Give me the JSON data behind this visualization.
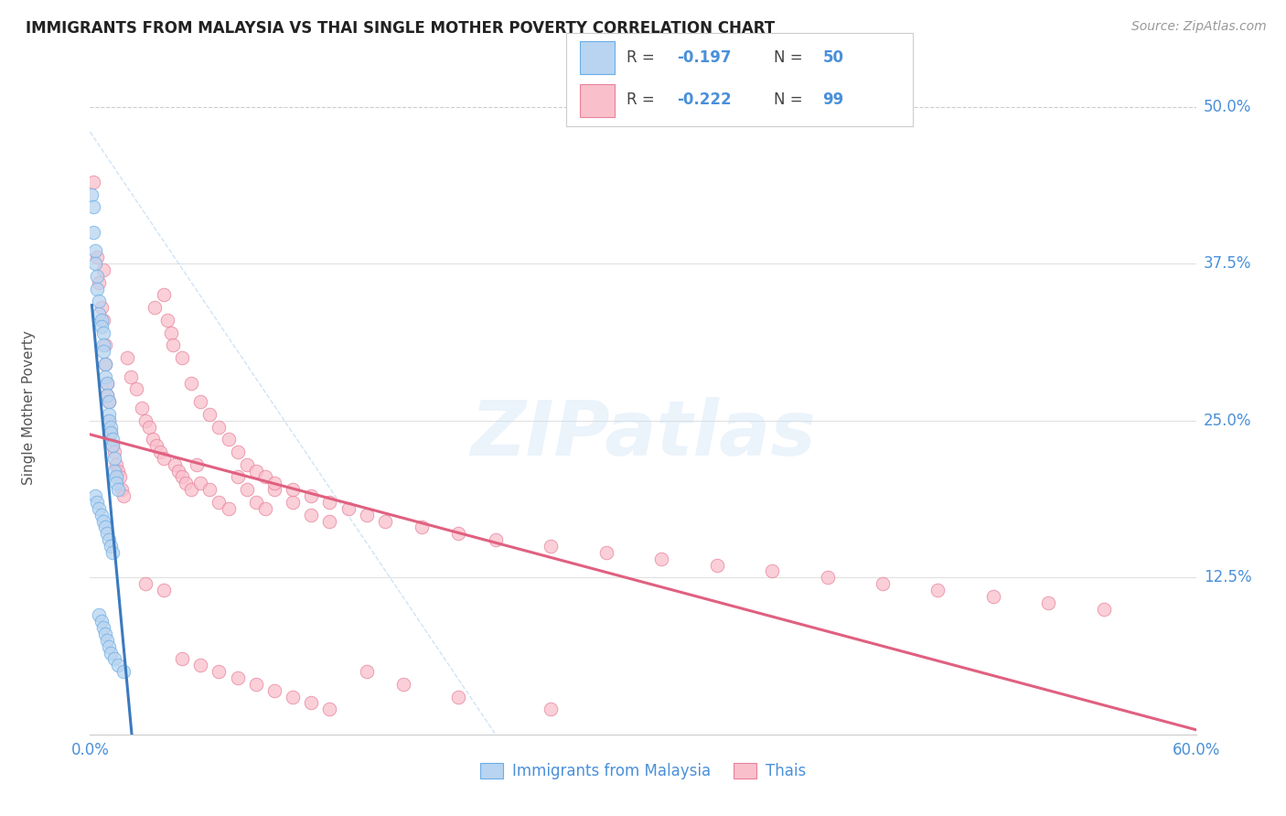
{
  "title": "IMMIGRANTS FROM MALAYSIA VS THAI SINGLE MOTHER POVERTY CORRELATION CHART",
  "source": "Source: ZipAtlas.com",
  "ylabel": "Single Mother Poverty",
  "legend_entries": [
    {
      "label": "Immigrants from Malaysia",
      "R": "-0.197",
      "N": "50",
      "scatter_color": "#b8d4f0",
      "edge_color": "#6aaee8",
      "line_color": "#3a7abf"
    },
    {
      "label": "Thais",
      "R": "-0.222",
      "N": "99",
      "scatter_color": "#f9c0cc",
      "edge_color": "#e8809a",
      "line_color": "#e06080"
    }
  ],
  "malaysia_x": [
    0.001,
    0.002,
    0.002,
    0.003,
    0.003,
    0.004,
    0.004,
    0.005,
    0.005,
    0.006,
    0.006,
    0.007,
    0.007,
    0.007,
    0.008,
    0.008,
    0.009,
    0.009,
    0.01,
    0.01,
    0.01,
    0.011,
    0.011,
    0.012,
    0.012,
    0.013,
    0.013,
    0.014,
    0.014,
    0.015,
    0.003,
    0.004,
    0.005,
    0.006,
    0.007,
    0.008,
    0.009,
    0.01,
    0.011,
    0.012,
    0.005,
    0.006,
    0.007,
    0.008,
    0.009,
    0.01,
    0.011,
    0.013,
    0.015,
    0.018
  ],
  "malaysia_y": [
    0.43,
    0.42,
    0.4,
    0.385,
    0.375,
    0.365,
    0.355,
    0.345,
    0.335,
    0.33,
    0.325,
    0.32,
    0.31,
    0.305,
    0.295,
    0.285,
    0.28,
    0.27,
    0.265,
    0.255,
    0.25,
    0.245,
    0.24,
    0.235,
    0.23,
    0.22,
    0.21,
    0.205,
    0.2,
    0.195,
    0.19,
    0.185,
    0.18,
    0.175,
    0.17,
    0.165,
    0.16,
    0.155,
    0.15,
    0.145,
    0.095,
    0.09,
    0.085,
    0.08,
    0.075,
    0.07,
    0.065,
    0.06,
    0.055,
    0.05
  ],
  "thai_x": [
    0.002,
    0.004,
    0.005,
    0.006,
    0.007,
    0.007,
    0.008,
    0.008,
    0.009,
    0.009,
    0.01,
    0.01,
    0.011,
    0.012,
    0.013,
    0.014,
    0.015,
    0.016,
    0.017,
    0.018,
    0.02,
    0.022,
    0.025,
    0.028,
    0.03,
    0.032,
    0.034,
    0.036,
    0.038,
    0.04,
    0.042,
    0.044,
    0.046,
    0.048,
    0.05,
    0.052,
    0.055,
    0.058,
    0.06,
    0.065,
    0.07,
    0.075,
    0.08,
    0.085,
    0.09,
    0.095,
    0.1,
    0.11,
    0.12,
    0.13,
    0.035,
    0.04,
    0.045,
    0.05,
    0.055,
    0.06,
    0.065,
    0.07,
    0.075,
    0.08,
    0.085,
    0.09,
    0.095,
    0.1,
    0.11,
    0.12,
    0.13,
    0.14,
    0.15,
    0.16,
    0.18,
    0.2,
    0.22,
    0.25,
    0.28,
    0.31,
    0.34,
    0.37,
    0.4,
    0.43,
    0.46,
    0.49,
    0.52,
    0.55,
    0.03,
    0.04,
    0.05,
    0.06,
    0.07,
    0.08,
    0.09,
    0.1,
    0.11,
    0.12,
    0.13,
    0.15,
    0.17,
    0.2,
    0.25
  ],
  "thai_y": [
    0.44,
    0.38,
    0.36,
    0.34,
    0.37,
    0.33,
    0.31,
    0.295,
    0.28,
    0.27,
    0.265,
    0.25,
    0.24,
    0.23,
    0.225,
    0.215,
    0.21,
    0.205,
    0.195,
    0.19,
    0.3,
    0.285,
    0.275,
    0.26,
    0.25,
    0.245,
    0.235,
    0.23,
    0.225,
    0.22,
    0.33,
    0.32,
    0.215,
    0.21,
    0.205,
    0.2,
    0.195,
    0.215,
    0.2,
    0.195,
    0.185,
    0.18,
    0.205,
    0.195,
    0.185,
    0.18,
    0.195,
    0.185,
    0.175,
    0.17,
    0.34,
    0.35,
    0.31,
    0.3,
    0.28,
    0.265,
    0.255,
    0.245,
    0.235,
    0.225,
    0.215,
    0.21,
    0.205,
    0.2,
    0.195,
    0.19,
    0.185,
    0.18,
    0.175,
    0.17,
    0.165,
    0.16,
    0.155,
    0.15,
    0.145,
    0.14,
    0.135,
    0.13,
    0.125,
    0.12,
    0.115,
    0.11,
    0.105,
    0.1,
    0.12,
    0.115,
    0.06,
    0.055,
    0.05,
    0.045,
    0.04,
    0.035,
    0.03,
    0.025,
    0.02,
    0.05,
    0.04,
    0.03,
    0.02
  ],
  "watermark_text": "ZIPatlas",
  "background_color": "#ffffff",
  "xlim": [
    0.0,
    0.6
  ],
  "ylim": [
    0.0,
    0.52
  ],
  "ytick_vals": [
    0.5,
    0.375,
    0.25,
    0.125
  ],
  "ytick_labels": [
    "50.0%",
    "37.5%",
    "25.0%",
    "12.5%"
  ],
  "title_fontsize": 12,
  "source_fontsize": 10,
  "tick_fontsize": 12,
  "ylabel_fontsize": 11
}
